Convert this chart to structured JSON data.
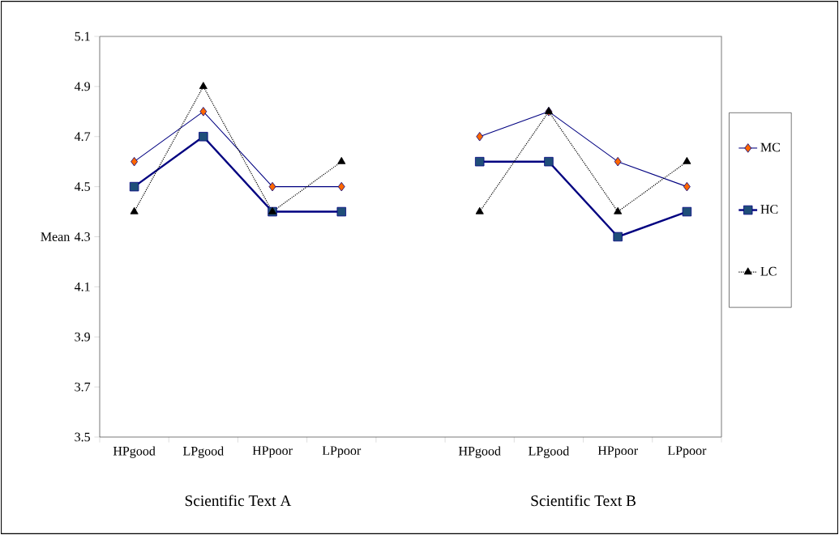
{
  "chart_data": {
    "type": "line",
    "ylabel": "Mean",
    "categories": [
      "HPgood",
      "LPgood",
      "HPpoor",
      "LPpoor",
      null,
      "HPgood",
      "LPgood",
      "HPpoor",
      "LPpoor"
    ],
    "series": [
      {
        "name": "MC",
        "color": "#000080",
        "marker": "diamond",
        "line_style": "solid",
        "colors": [
          "#ff6600",
          "#ff6600",
          "#ff6600",
          "#ff6600",
          null,
          "#ff6600",
          "#ff6600",
          "#ff6600",
          "#ff6600"
        ],
        "values": [
          4.6,
          4.8,
          4.5,
          4.5,
          null,
          4.7,
          4.8,
          4.6,
          4.5
        ]
      },
      {
        "name": "HC",
        "color": "#000080",
        "marker": "square",
        "line_style": "solid",
        "colors": [
          "#1f4e79",
          "#1f4e79",
          "#1f4e79",
          "#1f4e79",
          null,
          "#1f4e79",
          "#1f4e79",
          "#1f4e79",
          "#1f4e79"
        ],
        "values": [
          4.5,
          4.7,
          4.4,
          4.4,
          null,
          4.6,
          4.6,
          4.3,
          4.4
        ]
      },
      {
        "name": "LC",
        "color": "#000000",
        "marker": "triangle",
        "line_style": "dotted",
        "colors": [
          "#000000",
          "#000000",
          "#000000",
          "#000000",
          null,
          "#000000",
          "#000000",
          "#000000",
          "#000000"
        ],
        "values": [
          4.4,
          4.9,
          4.4,
          4.6,
          null,
          4.4,
          4.8,
          4.4,
          4.6
        ]
      }
    ],
    "ylim": [
      3.5,
      5.1
    ],
    "yticks": [
      3.5,
      3.7,
      3.9,
      4.1,
      4.3,
      4.5,
      4.7,
      4.9,
      5.1
    ],
    "legend": "right",
    "grid": false,
    "annotations": [
      "Scientific Text A",
      "Scientific Text B"
    ]
  }
}
